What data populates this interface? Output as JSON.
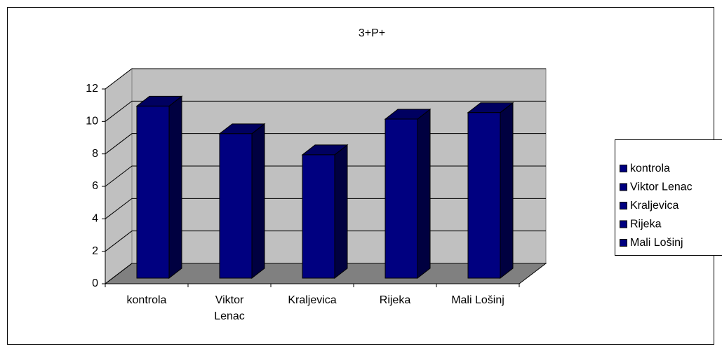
{
  "chart_data": {
    "type": "bar",
    "title": "3+P+",
    "categories": [
      "kontrola",
      "Viktor Lenac",
      "Kraljevica",
      "Rijeka",
      "Mali Lošinj"
    ],
    "values": [
      10.6,
      8.9,
      7.6,
      9.8,
      10.2
    ],
    "color": "#000080",
    "ylim": [
      0,
      12
    ],
    "yticks": [
      0,
      2,
      4,
      6,
      8,
      10,
      12
    ],
    "grid": true,
    "legend": "right"
  }
}
